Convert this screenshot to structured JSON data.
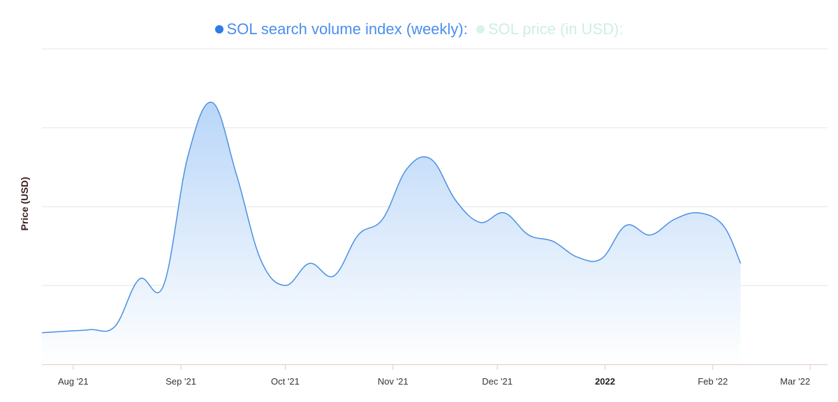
{
  "legend": {
    "primary_label": "SOL search volume index (weekly):",
    "secondary_label": "SOL price (in USD):"
  },
  "colors": {
    "line": "#4a90e2",
    "fill_top": "#b9d6f8",
    "fill_bottom": "#ffffff",
    "grid": "#e3e3e3",
    "axis": "#dcc9c9",
    "secondary": "#d9f3ea"
  },
  "chart_data": {
    "type": "area",
    "title": "",
    "xlabel": "",
    "ylabel": "Price (USD)",
    "ylim": [
      0,
      100
    ],
    "grid": true,
    "x_tick_labels": [
      {
        "date": "2021-08-01",
        "label": "Aug '21",
        "bold": false
      },
      {
        "date": "2021-09-01",
        "label": "Sep '21",
        "bold": false
      },
      {
        "date": "2021-10-01",
        "label": "Oct '21",
        "bold": false
      },
      {
        "date": "2021-11-01",
        "label": "Nov '21",
        "bold": false
      },
      {
        "date": "2021-12-01",
        "label": "Dec '21",
        "bold": false
      },
      {
        "date": "2022-01-01",
        "label": "2022",
        "bold": true
      },
      {
        "date": "2022-02-01",
        "label": "Feb '22",
        "bold": false
      },
      {
        "date": "2022-03-01",
        "label": "Mar '22",
        "bold": false
      }
    ],
    "x_range": [
      "2021-07-23",
      "2022-03-06"
    ],
    "series": [
      {
        "name": "SOL search volume index (weekly)",
        "points": [
          {
            "x": "2021-07-23",
            "y": 10
          },
          {
            "x": "2021-07-30",
            "y": 10.5
          },
          {
            "x": "2021-08-06",
            "y": 11
          },
          {
            "x": "2021-08-13",
            "y": 12
          },
          {
            "x": "2021-08-20",
            "y": 27
          },
          {
            "x": "2021-08-27",
            "y": 25
          },
          {
            "x": "2021-09-03",
            "y": 66
          },
          {
            "x": "2021-09-10",
            "y": 83
          },
          {
            "x": "2021-09-17",
            "y": 60
          },
          {
            "x": "2021-09-24",
            "y": 33
          },
          {
            "x": "2021-10-01",
            "y": 25
          },
          {
            "x": "2021-10-08",
            "y": 32
          },
          {
            "x": "2021-10-15",
            "y": 28
          },
          {
            "x": "2021-10-22",
            "y": 41
          },
          {
            "x": "2021-10-29",
            "y": 46
          },
          {
            "x": "2021-11-05",
            "y": 62
          },
          {
            "x": "2021-11-12",
            "y": 65
          },
          {
            "x": "2021-11-19",
            "y": 52
          },
          {
            "x": "2021-11-26",
            "y": 45
          },
          {
            "x": "2021-12-03",
            "y": 48
          },
          {
            "x": "2021-12-10",
            "y": 41
          },
          {
            "x": "2021-12-17",
            "y": 39
          },
          {
            "x": "2021-12-24",
            "y": 34
          },
          {
            "x": "2021-12-31",
            "y": 33.5
          },
          {
            "x": "2022-01-07",
            "y": 44
          },
          {
            "x": "2022-01-14",
            "y": 41
          },
          {
            "x": "2022-01-21",
            "y": 46
          },
          {
            "x": "2022-01-28",
            "y": 48
          },
          {
            "x": "2022-02-04",
            "y": 44
          },
          {
            "x": "2022-02-09",
            "y": 32
          }
        ]
      }
    ]
  }
}
